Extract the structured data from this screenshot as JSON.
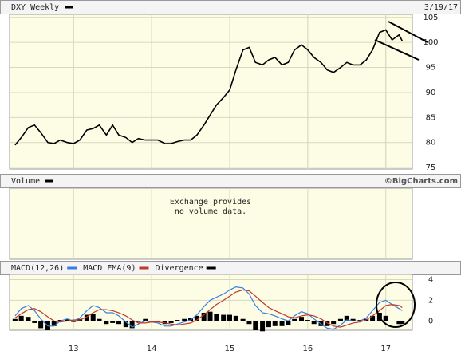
{
  "chart_data": [
    {
      "type": "line",
      "title": "DXY Weekly",
      "date": "3/19/17",
      "color": "#000000",
      "grid": true,
      "x": [
        2012.25,
        2012.33,
        2012.42,
        2012.5,
        2012.58,
        2012.67,
        2012.75,
        2012.83,
        2012.92,
        2013.0,
        2013.08,
        2013.17,
        2013.25,
        2013.33,
        2013.42,
        2013.5,
        2013.58,
        2013.67,
        2013.75,
        2013.83,
        2013.92,
        2014.0,
        2014.08,
        2014.17,
        2014.25,
        2014.33,
        2014.42,
        2014.5,
        2014.58,
        2014.67,
        2014.75,
        2014.83,
        2014.92,
        2015.0,
        2015.08,
        2015.17,
        2015.25,
        2015.33,
        2015.42,
        2015.5,
        2015.58,
        2015.67,
        2015.75,
        2015.83,
        2015.92,
        2016.0,
        2016.08,
        2016.17,
        2016.25,
        2016.33,
        2016.42,
        2016.5,
        2016.58,
        2016.67,
        2016.75,
        2016.83,
        2016.92,
        2017.0,
        2017.08,
        2017.17,
        2017.21
      ],
      "values": [
        79.5,
        81,
        83,
        83.5,
        82,
        80,
        79.8,
        80.5,
        80,
        79.8,
        80.5,
        82.5,
        82.8,
        83.5,
        81.5,
        83.5,
        81.5,
        81,
        80,
        80.8,
        80.5,
        80.5,
        80.5,
        79.8,
        79.8,
        80.2,
        80.5,
        80.5,
        81.5,
        83.5,
        85.5,
        87.5,
        89,
        90.5,
        94.5,
        98.5,
        99,
        96,
        95.5,
        96.5,
        97,
        95.5,
        96,
        98.5,
        99.5,
        98.5,
        97,
        96,
        94.5,
        94,
        95,
        96,
        95.5,
        95.5,
        96.5,
        98.5,
        102,
        102.5,
        100.5,
        101.5,
        100.3
      ],
      "xlim": [
        2012.18,
        2017.34
      ],
      "xticks": [
        2013,
        2014,
        2015,
        2016,
        2017
      ],
      "ylim": [
        74.7,
        105.6
      ],
      "yticks": [
        75,
        80,
        85,
        90,
        95,
        100,
        105
      ]
    },
    {
      "type": "note",
      "title": "Volume",
      "credit": "©BigCharts.com",
      "message": [
        "Exchange provides",
        "no volume data."
      ]
    },
    {
      "type": "macd",
      "grid": true,
      "x": [
        2012.25,
        2012.33,
        2012.42,
        2012.5,
        2012.58,
        2012.67,
        2012.75,
        2012.83,
        2012.92,
        2013.0,
        2013.08,
        2013.17,
        2013.25,
        2013.33,
        2013.42,
        2013.5,
        2013.58,
        2013.67,
        2013.75,
        2013.83,
        2013.92,
        2014.0,
        2014.08,
        2014.17,
        2014.25,
        2014.33,
        2014.42,
        2014.5,
        2014.58,
        2014.67,
        2014.75,
        2014.83,
        2014.92,
        2015.0,
        2015.08,
        2015.17,
        2015.25,
        2015.33,
        2015.42,
        2015.5,
        2015.58,
        2015.67,
        2015.75,
        2015.83,
        2015.92,
        2016.0,
        2016.08,
        2016.17,
        2016.25,
        2016.33,
        2016.42,
        2016.5,
        2016.58,
        2016.67,
        2016.75,
        2016.83,
        2016.92,
        2017.0,
        2017.08,
        2017.17,
        2017.21
      ],
      "series": [
        {
          "name": "MACD(12,26)",
          "color": "#3a7fe0",
          "style": "line",
          "values": [
            0.5,
            1.2,
            1.5,
            1.0,
            0.2,
            -0.5,
            -0.5,
            0,
            0.2,
            0,
            0.3,
            1,
            1.5,
            1.3,
            0.8,
            0.8,
            0.5,
            -0.1,
            -0.6,
            -0.3,
            0,
            -0.1,
            -0.2,
            -0.5,
            -0.5,
            -0.3,
            -0.1,
            0.1,
            0.6,
            1.4,
            2,
            2.3,
            2.6,
            3,
            3.3,
            3.2,
            2.6,
            1.5,
            0.8,
            0.7,
            0.5,
            0.2,
            0,
            0.5,
            0.9,
            0.7,
            0.2,
            -0.3,
            -0.7,
            -0.8,
            -0.4,
            0.1,
            0,
            0,
            0.3,
            1,
            1.8,
            2,
            1.6,
            1.2,
            1.0
          ]
        },
        {
          "name": "MACD EMA(9)",
          "color": "#c0392b",
          "style": "line",
          "values": [
            0.3,
            0.7,
            1.1,
            1.2,
            0.9,
            0.4,
            0,
            -0.1,
            0,
            0.1,
            0.1,
            0.4,
            0.8,
            1.1,
            1.1,
            1,
            0.8,
            0.5,
            0.1,
            -0.2,
            -0.2,
            -0.1,
            -0.1,
            -0.2,
            -0.3,
            -0.4,
            -0.3,
            -0.2,
            0.1,
            0.6,
            1.1,
            1.6,
            2,
            2.4,
            2.8,
            3,
            2.9,
            2.4,
            1.8,
            1.3,
            1,
            0.7,
            0.4,
            0.3,
            0.5,
            0.6,
            0.5,
            0.2,
            -0.2,
            -0.5,
            -0.6,
            -0.4,
            -0.2,
            -0.1,
            0.1,
            0.5,
            1,
            1.5,
            1.6,
            1.5,
            1.3
          ]
        },
        {
          "name": "Divergence",
          "color": "#000000",
          "style": "bar",
          "values": [
            0.2,
            0.5,
            0.4,
            -0.2,
            -0.7,
            -0.9,
            -0.5,
            0.1,
            0.2,
            -0.1,
            0.2,
            0.6,
            0.7,
            0.2,
            -0.3,
            -0.2,
            -0.3,
            -0.6,
            -0.7,
            -0.1,
            0.2,
            0,
            -0.1,
            -0.3,
            -0.2,
            0.1,
            0.2,
            0.3,
            0.5,
            0.8,
            0.9,
            0.7,
            0.6,
            0.6,
            0.5,
            0.2,
            -0.3,
            -0.9,
            -1,
            -0.6,
            -0.5,
            -0.5,
            -0.4,
            0.2,
            0.4,
            0.1,
            -0.3,
            -0.5,
            -0.5,
            -0.3,
            0.2,
            0.5,
            0.2,
            0.1,
            0.2,
            0.5,
            0.8,
            0.5,
            0,
            -0.3,
            -0.3
          ]
        }
      ],
      "xlim": [
        2012.18,
        2017.34
      ],
      "xticks": [
        {
          "value": 2013,
          "label": "13"
        },
        {
          "value": 2014,
          "label": "14"
        },
        {
          "value": 2015,
          "label": "15"
        },
        {
          "value": 2016,
          "label": "16"
        },
        {
          "value": 2017,
          "label": "17"
        }
      ],
      "ylim": [
        -0.9,
        4.5
      ],
      "yticks": [
        0,
        2,
        4
      ]
    }
  ]
}
